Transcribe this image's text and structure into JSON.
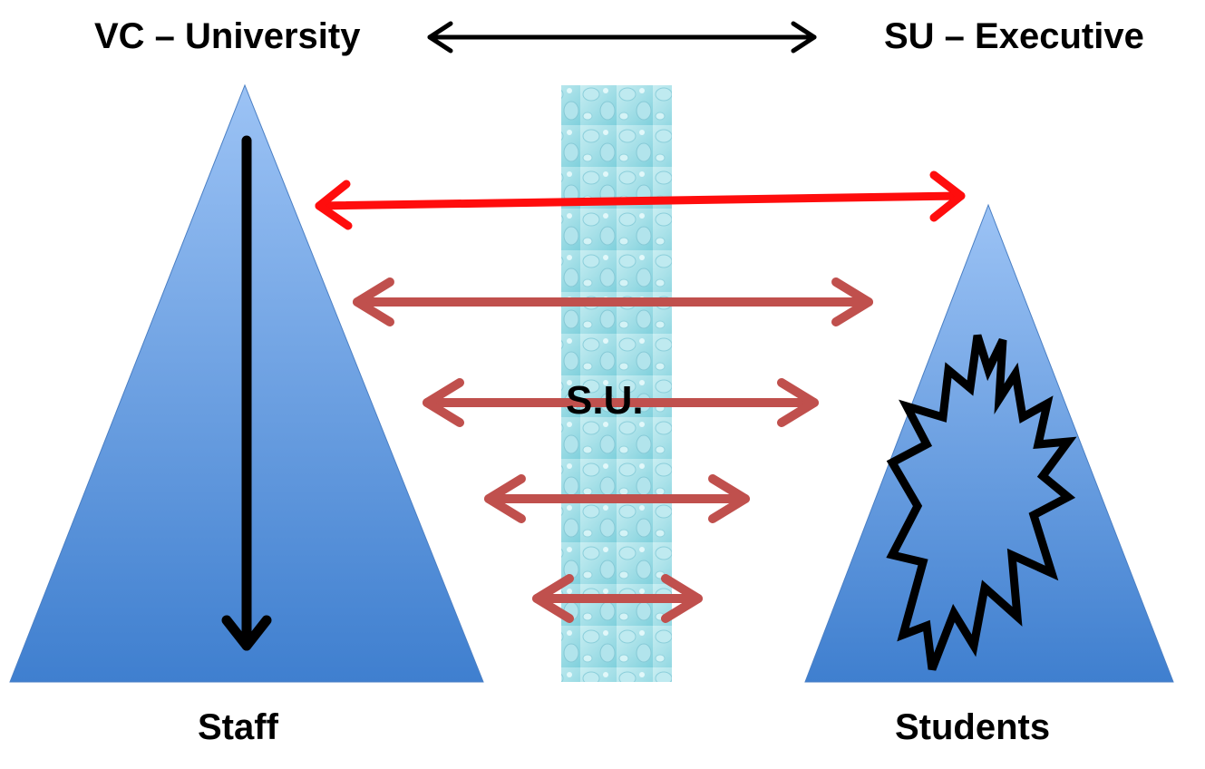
{
  "labels": {
    "top_left": "VC – University",
    "top_right": "SU – Executive",
    "bottom_left": "Staff",
    "bottom_right": "Students",
    "center": "S.U."
  },
  "colors": {
    "triangle_light": "#9cc3f5",
    "triangle_dark": "#3f7fcf",
    "column_light": "#c9eef2",
    "column_dark": "#7fd0dc",
    "primary_arrow": "#ff0d0d",
    "secondary_arrow": "#c0504d",
    "black_arrow": "#000000"
  },
  "icons": [
    "double-headed-arrow",
    "down-arrow",
    "jagged-starburst",
    "water-drops-texture"
  ]
}
